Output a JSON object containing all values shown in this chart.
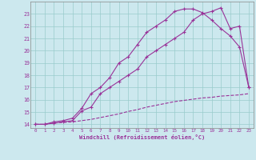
{
  "xlabel": "Windchill (Refroidissement éolien,°C)",
  "xlim": [
    -0.5,
    23.5
  ],
  "ylim": [
    13.7,
    24.0
  ],
  "yticks": [
    14,
    15,
    16,
    17,
    18,
    19,
    20,
    21,
    22,
    23
  ],
  "xticks": [
    0,
    1,
    2,
    3,
    4,
    5,
    6,
    7,
    8,
    9,
    10,
    11,
    12,
    13,
    14,
    15,
    16,
    17,
    18,
    19,
    20,
    21,
    22,
    23
  ],
  "bg_color": "#cce8ee",
  "line_color": "#993399",
  "grid_color": "#99cccc",
  "line_dashed_x": [
    0,
    1,
    2,
    3,
    4,
    5,
    6,
    7,
    8,
    9,
    10,
    11,
    12,
    13,
    14,
    15,
    16,
    17,
    18,
    19,
    20,
    21,
    22,
    23
  ],
  "line_dashed_y": [
    14.0,
    14.0,
    14.1,
    14.15,
    14.2,
    14.3,
    14.4,
    14.55,
    14.7,
    14.85,
    15.05,
    15.2,
    15.4,
    15.55,
    15.7,
    15.85,
    15.95,
    16.05,
    16.15,
    16.2,
    16.3,
    16.35,
    16.4,
    16.5
  ],
  "line_upper_x": [
    0,
    1,
    2,
    3,
    4,
    5,
    6,
    7,
    8,
    9,
    10,
    11,
    12,
    13,
    14,
    15,
    16,
    17,
    18,
    19,
    20,
    21,
    22,
    23
  ],
  "line_upper_y": [
    14.0,
    14.0,
    14.2,
    14.3,
    14.5,
    15.3,
    16.5,
    17.0,
    17.8,
    19.0,
    19.5,
    20.5,
    21.5,
    22.0,
    22.5,
    23.2,
    23.4,
    23.4,
    23.1,
    22.5,
    21.8,
    21.2,
    20.3,
    17.0
  ],
  "line_lower_x": [
    0,
    1,
    2,
    3,
    4,
    5,
    6,
    7,
    8,
    9,
    10,
    11,
    12,
    13,
    14,
    15,
    16,
    17,
    18,
    19,
    20,
    21,
    22,
    23
  ],
  "line_lower_y": [
    14.0,
    14.0,
    14.1,
    14.2,
    14.3,
    15.1,
    15.4,
    16.5,
    17.0,
    17.5,
    18.0,
    18.5,
    19.5,
    20.0,
    20.5,
    21.0,
    21.5,
    22.5,
    23.0,
    23.2,
    23.5,
    21.8,
    22.0,
    17.0
  ]
}
